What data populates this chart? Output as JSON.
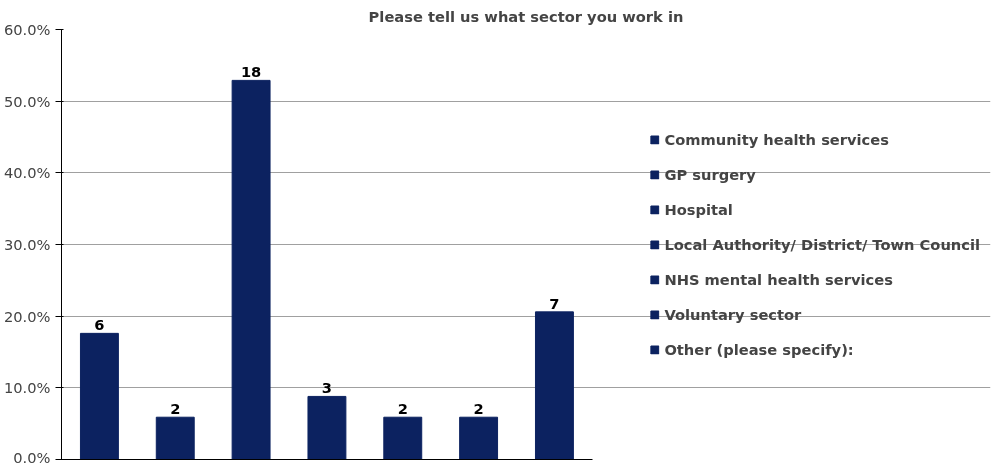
{
  "chart_data": {
    "type": "bar",
    "title": "Please tell us what sector you work in",
    "categories": [
      null,
      null,
      null,
      null,
      null,
      null,
      null
    ],
    "stacked": true,
    "series": [
      {
        "name": "Community health services",
        "color": "#0c2260",
        "values": [
          17.6,
          null,
          null,
          null,
          null,
          null,
          null
        ]
      },
      {
        "name": "GP surgery",
        "color": "#0c2260",
        "values": [
          null,
          5.9,
          null,
          null,
          null,
          null,
          null
        ]
      },
      {
        "name": "Hospital",
        "color": "#0c2260",
        "values": [
          null,
          null,
          52.9,
          null,
          null,
          null,
          null
        ]
      },
      {
        "name": "Local Authority/ District/ Town Council",
        "color": "#0c2260",
        "values": [
          null,
          null,
          null,
          8.8,
          null,
          null,
          null
        ]
      },
      {
        "name": "NHS mental health services",
        "color": "#0c2260",
        "values": [
          null,
          null,
          null,
          null,
          5.9,
          null,
          null
        ]
      },
      {
        "name": "Voluntary sector",
        "color": "#0c2260",
        "values": [
          null,
          null,
          null,
          null,
          null,
          5.9,
          null
        ]
      },
      {
        "name": "Other (please specify):",
        "color": "#0c2260",
        "values": [
          null,
          null,
          null,
          null,
          null,
          null,
          20.6
        ]
      }
    ],
    "annotations": [
      "6",
      "2",
      "18",
      "3",
      "2",
      "2",
      "7"
    ],
    "ylim": [
      0,
      60
    ],
    "yticks": [
      {
        "value": 0,
        "label": "0.0%"
      },
      {
        "value": 10,
        "label": "10.0%"
      },
      {
        "value": 20,
        "label": "20.0%"
      },
      {
        "value": 30,
        "label": "30.0%"
      },
      {
        "value": 40,
        "label": "40.0%"
      },
      {
        "value": 50,
        "label": "50.0%"
      },
      {
        "value": 60,
        "label": "60.0%"
      }
    ],
    "grid": "y",
    "legend": "right",
    "tick_labels": "y"
  }
}
